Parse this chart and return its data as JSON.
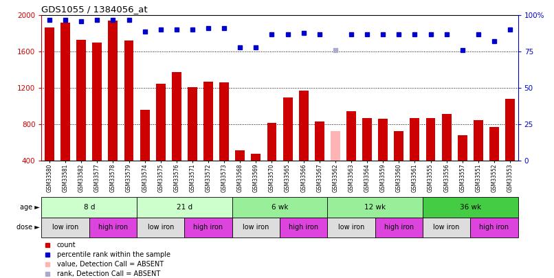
{
  "title": "GDS1055 / 1384056_at",
  "samples": [
    "GSM33580",
    "GSM33581",
    "GSM33582",
    "GSM33577",
    "GSM33578",
    "GSM33579",
    "GSM33574",
    "GSM33575",
    "GSM33576",
    "GSM33571",
    "GSM33572",
    "GSM33573",
    "GSM33568",
    "GSM33569",
    "GSM33570",
    "GSM33565",
    "GSM33566",
    "GSM33567",
    "GSM33562",
    "GSM33563",
    "GSM33564",
    "GSM33559",
    "GSM33560",
    "GSM33561",
    "GSM33555",
    "GSM33556",
    "GSM33557",
    "GSM33551",
    "GSM33552",
    "GSM33553"
  ],
  "counts": [
    1870,
    1920,
    1730,
    1700,
    1940,
    1720,
    960,
    1250,
    1380,
    1210,
    1270,
    1260,
    520,
    480,
    820,
    1100,
    1170,
    830,
    730,
    950,
    870,
    860,
    730,
    870,
    870,
    920,
    680,
    850,
    770,
    1080
  ],
  "absent_bar_indices": [
    18
  ],
  "percentile": [
    97,
    97,
    96,
    97,
    97,
    97,
    89,
    90,
    90,
    90,
    91,
    91,
    78,
    78,
    87,
    87,
    88,
    87,
    76,
    87,
    87,
    87,
    87,
    87,
    87,
    87,
    76,
    87,
    82,
    90
  ],
  "absent_pct_indices": [
    18
  ],
  "bar_color": "#cc0000",
  "bar_absent_color": "#ffb3b3",
  "dot_color": "#0000cc",
  "dot_absent_color": "#aaaacc",
  "ylim_left": [
    400,
    2000
  ],
  "ylim_right": [
    0,
    100
  ],
  "yticks_left": [
    400,
    800,
    1200,
    1600,
    2000
  ],
  "yticks_right": [
    0,
    25,
    50,
    75,
    100
  ],
  "age_groups": [
    {
      "label": "8 d",
      "start": 0,
      "end": 6,
      "color": "#ccffcc"
    },
    {
      "label": "21 d",
      "start": 6,
      "end": 12,
      "color": "#ccffcc"
    },
    {
      "label": "6 wk",
      "start": 12,
      "end": 18,
      "color": "#99ee99"
    },
    {
      "label": "12 wk",
      "start": 18,
      "end": 24,
      "color": "#99ee99"
    },
    {
      "label": "36 wk",
      "start": 24,
      "end": 30,
      "color": "#44cc44"
    }
  ],
  "dose_groups": [
    {
      "label": "low iron",
      "start": 0,
      "end": 3,
      "color": "#dddddd"
    },
    {
      "label": "high iron",
      "start": 3,
      "end": 6,
      "color": "#dd44dd"
    },
    {
      "label": "low iron",
      "start": 6,
      "end": 9,
      "color": "#dddddd"
    },
    {
      "label": "high iron",
      "start": 9,
      "end": 12,
      "color": "#dd44dd"
    },
    {
      "label": "low iron",
      "start": 12,
      "end": 15,
      "color": "#dddddd"
    },
    {
      "label": "high iron",
      "start": 15,
      "end": 18,
      "color": "#dd44dd"
    },
    {
      "label": "low iron",
      "start": 18,
      "end": 21,
      "color": "#dddddd"
    },
    {
      "label": "high iron",
      "start": 21,
      "end": 24,
      "color": "#dd44dd"
    },
    {
      "label": "low iron",
      "start": 24,
      "end": 27,
      "color": "#dddddd"
    },
    {
      "label": "high iron",
      "start": 27,
      "end": 30,
      "color": "#dd44dd"
    }
  ],
  "legend_items": [
    {
      "label": "count",
      "color": "#cc0000"
    },
    {
      "label": "percentile rank within the sample",
      "color": "#0000cc"
    },
    {
      "label": "value, Detection Call = ABSENT",
      "color": "#ffb3b3"
    },
    {
      "label": "rank, Detection Call = ABSENT",
      "color": "#aaaacc"
    }
  ]
}
